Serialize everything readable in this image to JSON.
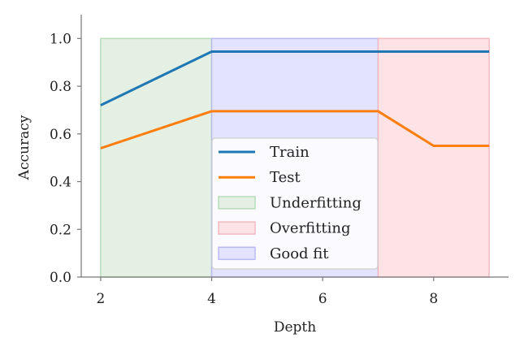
{
  "chart_data": {
    "type": "line",
    "xlabel": "Depth",
    "ylabel": "Accuracy",
    "xlim": [
      1.65,
      9.35
    ],
    "ylim": [
      0.0,
      1.1
    ],
    "x_ticks": [
      2,
      4,
      6,
      8
    ],
    "y_ticks": [
      0.0,
      0.2,
      0.4,
      0.6,
      0.8,
      1.0
    ],
    "x_tick_labels": [
      "2",
      "4",
      "6",
      "8"
    ],
    "y_tick_labels": [
      "0.0",
      "0.2",
      "0.4",
      "0.6",
      "0.8",
      "1.0"
    ],
    "grid": false,
    "legend_position": "lower-center",
    "series": [
      {
        "name": "Train",
        "color": "#1f77b4",
        "x": [
          2,
          4,
          5,
          6,
          7,
          8,
          9
        ],
        "y": [
          0.72,
          0.945,
          0.945,
          0.945,
          0.945,
          0.945,
          0.945
        ]
      },
      {
        "name": "Test",
        "color": "#ff7f0e",
        "x": [
          2,
          4,
          5,
          6,
          7,
          8,
          9
        ],
        "y": [
          0.54,
          0.695,
          0.695,
          0.695,
          0.695,
          0.55,
          0.55
        ]
      }
    ],
    "regions": [
      {
        "name": "Underfitting",
        "x_range": [
          2,
          4
        ],
        "y_range": [
          0,
          1.0
        ],
        "fill": "#e3f0e3",
        "edge": "#b8dcb8"
      },
      {
        "name": "Good fit",
        "x_range": [
          4,
          7
        ],
        "y_range": [
          0,
          1.0
        ],
        "fill": "#e3e3fe",
        "edge": "#b9b9f2"
      },
      {
        "name": "Overfitting",
        "x_range": [
          7,
          9
        ],
        "y_range": [
          0,
          1.0
        ],
        "fill": "#fee3e6",
        "edge": "#f2b9c0"
      }
    ],
    "legend": [
      {
        "label": "Train",
        "kind": "line",
        "color": "#1f77b4"
      },
      {
        "label": "Test",
        "kind": "line",
        "color": "#ff7f0e"
      },
      {
        "label": "Underfitting",
        "kind": "patch",
        "fill": "#e3f0e3",
        "edge": "#b8dcb8"
      },
      {
        "label": "Overfitting",
        "kind": "patch",
        "fill": "#fee3e6",
        "edge": "#f2b9c0"
      },
      {
        "label": "Good fit",
        "kind": "patch",
        "fill": "#e3e3fe",
        "edge": "#b9b9f2"
      }
    ]
  }
}
